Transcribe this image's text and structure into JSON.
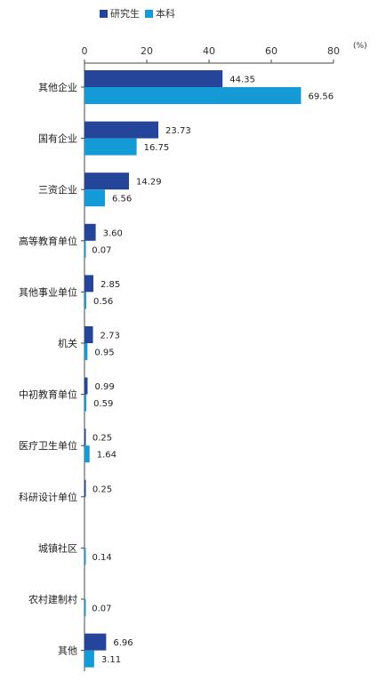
{
  "chart_data": {
    "type": "bar",
    "orientation": "horizontal",
    "unit": "(%)",
    "xlim": [
      0,
      80
    ],
    "xticks": [
      "0",
      "20",
      "40",
      "60",
      "80"
    ],
    "grid": false,
    "legend_position": "top-left",
    "colors": {
      "研究生": "#25459b",
      "本科": "#159ad8"
    },
    "categories": [
      "其他企业",
      "国有企业",
      "三资企业",
      "高等教育单位",
      "其他事业单位",
      "机关",
      "中初教育单位",
      "医疗卫生单位",
      "科研设计单位",
      "城镇社区",
      "农村建制村",
      "其他"
    ],
    "series": [
      {
        "name": "研究生",
        "values": [
          44.35,
          23.73,
          14.29,
          3.6,
          2.85,
          2.73,
          0.99,
          0.25,
          0.25,
          null,
          null,
          6.96
        ],
        "labels": [
          "44.35",
          "23.73",
          "14.29",
          "3.60",
          "2.85",
          "2.73",
          "0.99",
          "0.25",
          "0.25",
          "",
          "",
          "6.96"
        ]
      },
      {
        "name": "本科",
        "values": [
          69.56,
          16.75,
          6.56,
          0.07,
          0.56,
          0.95,
          0.59,
          1.64,
          null,
          0.14,
          0.07,
          3.11
        ],
        "labels": [
          "69.56",
          "16.75",
          "6.56",
          "0.07",
          "0.56",
          "0.95",
          "0.59",
          "1.64",
          "",
          "0.14",
          "0.07",
          "3.11"
        ]
      }
    ]
  }
}
